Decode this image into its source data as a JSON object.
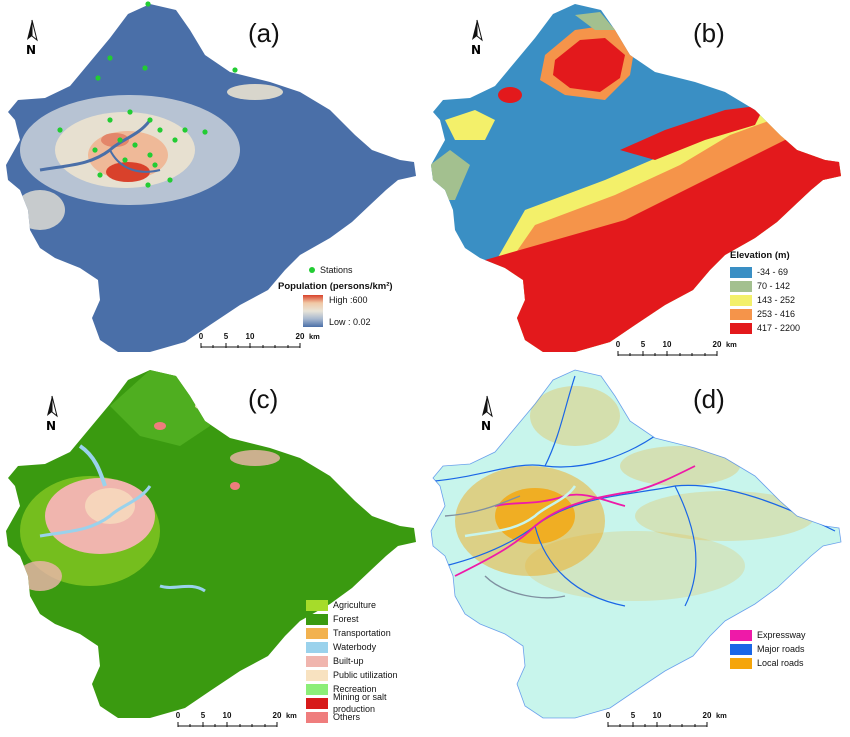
{
  "panels": {
    "a": {
      "label": "(a)",
      "legend": {
        "stations_label": "Stations",
        "title": "Population (persons/km²)",
        "high_label": "High :600",
        "low_label": "Low : 0.02"
      },
      "scale": {
        "ticks": [
          "0",
          "5",
          "10",
          "20"
        ],
        "unit": "km"
      },
      "colors": {
        "base": "#4a6fa8",
        "mid": "#e8e4d8",
        "high": "#d9412b",
        "station": "#22cc33"
      }
    },
    "b": {
      "label": "(b)",
      "legend": {
        "title": "Elevation (m)",
        "items": [
          {
            "label": "-34 - 69",
            "color": "#3a8fc4"
          },
          {
            "label": "70 - 142",
            "color": "#a3c08f"
          },
          {
            "label": "143 - 252",
            "color": "#f3f06a"
          },
          {
            "label": "253 - 416",
            "color": "#f5944a"
          },
          {
            "label": "417 - 2200",
            "color": "#e3191c"
          }
        ]
      },
      "scale": {
        "ticks": [
          "0",
          "5",
          "10",
          "20"
        ],
        "unit": "km"
      }
    },
    "c": {
      "label": "(c)",
      "legend": {
        "items": [
          {
            "label": "Agriculture",
            "color": "#a6dc2a"
          },
          {
            "label": "Forest",
            "color": "#3a9a10"
          },
          {
            "label": "Transportation",
            "color": "#f2b24f"
          },
          {
            "label": "Waterbody",
            "color": "#9ad2ec"
          },
          {
            "label": "Built-up",
            "color": "#f0b5ae"
          },
          {
            "label": "Public utilization",
            "color": "#f8e2c0"
          },
          {
            "label": "Recreation",
            "color": "#8cee78"
          },
          {
            "label": "Mining or salt production",
            "color": "#d71a1a"
          },
          {
            "label": "Others",
            "color": "#ef7d7d"
          }
        ]
      },
      "scale": {
        "ticks": [
          "0",
          "5",
          "10",
          "20"
        ],
        "unit": "km"
      }
    },
    "d": {
      "label": "(d)",
      "legend": {
        "items": [
          {
            "label": "Expressway",
            "color": "#ee1aa8"
          },
          {
            "label": "Major roads",
            "color": "#1a66e6"
          },
          {
            "label": "Local roads",
            "color": "#f5a50a"
          }
        ]
      },
      "scale": {
        "ticks": [
          "0",
          "5",
          "10",
          "20"
        ],
        "unit": "km"
      },
      "colors": {
        "base": "#c8f5ec"
      }
    }
  }
}
